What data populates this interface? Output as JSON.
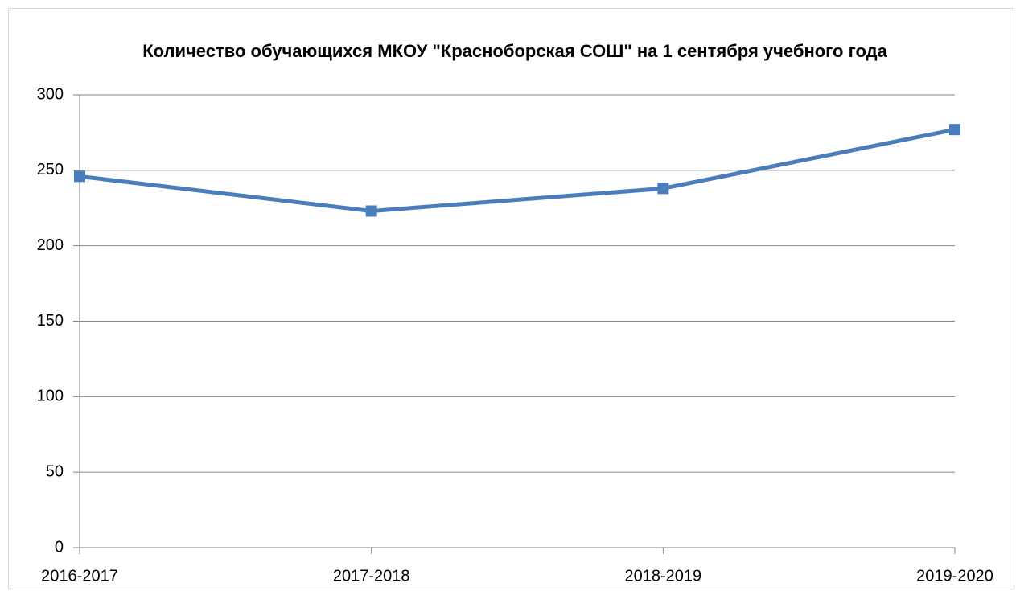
{
  "chart_data": {
    "type": "line",
    "title": "Количество обучающихся МКОУ \"Красноборская СОШ\" на 1 сентября учебного года",
    "categories": [
      "2016-2017",
      "2017-2018",
      "2018-2019",
      "2019-2020"
    ],
    "series": [
      {
        "name": "Количество обучающихся",
        "color": "#4a7ebb",
        "values": [
          246,
          223,
          238,
          277
        ]
      }
    ],
    "ylim": [
      0,
      300
    ],
    "yticks": [
      0,
      50,
      100,
      150,
      200,
      250,
      300
    ],
    "grid": true
  }
}
